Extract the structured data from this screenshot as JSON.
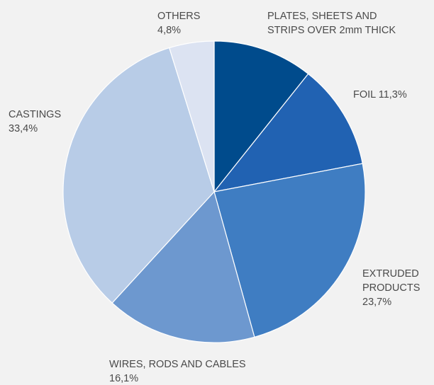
{
  "chart_data": {
    "type": "pie",
    "title": "",
    "start_angle_deg": 0,
    "direction": "clockwise",
    "legend": "none",
    "slices": [
      {
        "name": "PLATES, SHEETS AND STRIPS OVER 2mm THICK",
        "value": 10.7,
        "color": "#004b8c",
        "label_lines": [
          "PLATES, SHEETS AND",
          "STRIPS OVER 2mm THICK"
        ],
        "label_anchor": "start"
      },
      {
        "name": "FOIL",
        "value": 11.3,
        "color": "#2162b2",
        "label_lines": [
          "FOIL 11,3%"
        ],
        "label_anchor": "start"
      },
      {
        "name": "EXTRUDED PRODUCTS",
        "value": 23.7,
        "color": "#3f7dc2",
        "label_lines": [
          "EXTRUDED",
          "PRODUCTS",
          "23,7%"
        ],
        "label_anchor": "start"
      },
      {
        "name": "WIRES, RODS AND CABLES",
        "value": 16.1,
        "color": "#6d98cf",
        "label_lines": [
          "WIRES, RODS AND CABLES",
          "16,1%"
        ],
        "label_anchor": "start"
      },
      {
        "name": "CASTINGS",
        "value": 33.4,
        "color": "#b8cce7",
        "label_lines": [
          "CASTINGS",
          "33,4%"
        ],
        "label_anchor": "start"
      },
      {
        "name": "OTHERS",
        "value": 4.8,
        "color": "#dce3f2",
        "label_lines": [
          "OTHERS",
          "4,8%"
        ],
        "label_anchor": "start"
      }
    ]
  }
}
